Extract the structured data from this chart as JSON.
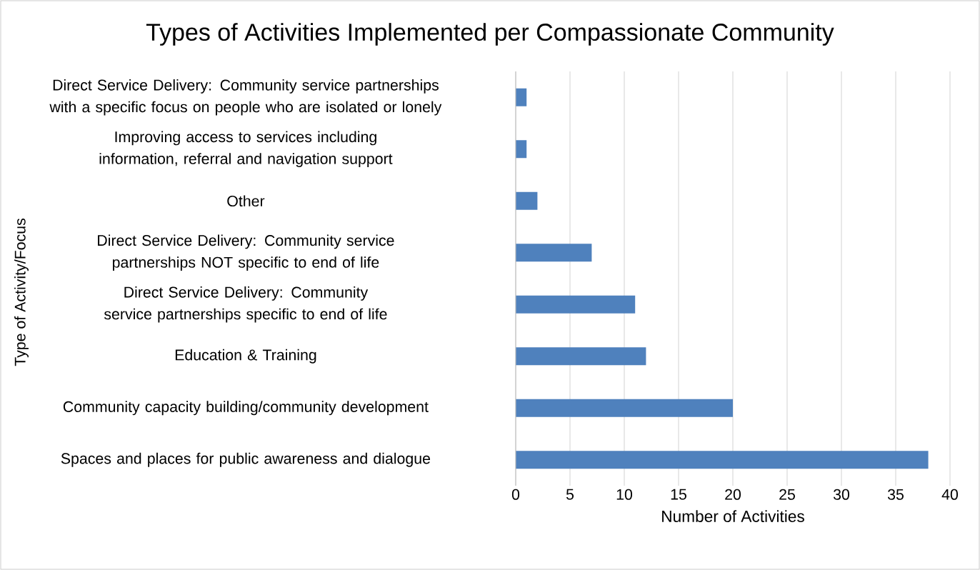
{
  "chart_data": {
    "type": "bar",
    "orientation": "horizontal",
    "title": "Types of Activities Implemented per Compassionate Community",
    "xlabel": "Number of Activities",
    "ylabel": "Type of Activity/Focus",
    "categories": [
      "Direct Service Delivery: Community service partnerships with a specific focus on people who are isolated or lonely",
      "Improving access to services including information, referral and navigation support",
      "Other",
      "Direct Service Delivery: Community service partnerships NOT specific to end of life",
      "Direct Service Delivery: Community service partnerships specific to end of life",
      "Education & Training",
      "Community capacity building/community development",
      "Spaces and places for public awareness and dialogue"
    ],
    "values": [
      1,
      1,
      2,
      7,
      11,
      12,
      20,
      38
    ],
    "color": "#4f81bd",
    "xlim": [
      0,
      40
    ],
    "xticks": [
      0,
      5,
      10,
      15,
      20,
      25,
      30,
      35,
      40
    ],
    "grid": "x"
  }
}
